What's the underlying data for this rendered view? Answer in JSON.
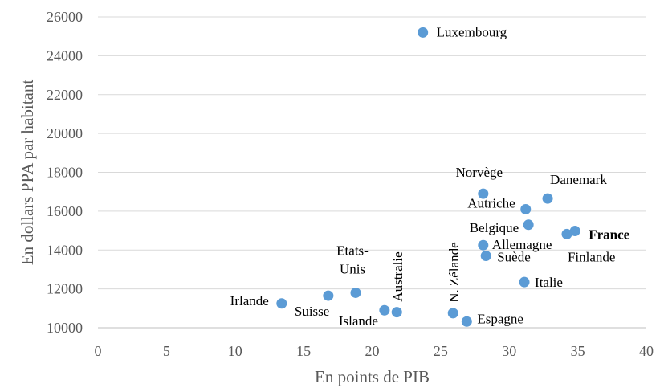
{
  "chart_data": {
    "type": "scatter",
    "title": "",
    "xlabel": "En points de PIB",
    "ylabel": "En dollars PPA par habitant",
    "xlim": [
      0,
      40
    ],
    "ylim": [
      10000,
      26000
    ],
    "x_ticks": [
      0,
      5,
      10,
      15,
      20,
      25,
      30,
      35,
      40
    ],
    "y_ticks": [
      10000,
      12000,
      14000,
      16000,
      18000,
      20000,
      22000,
      24000,
      26000
    ],
    "grid": "horizontal",
    "marker_color": "#5b9bd5",
    "points": [
      {
        "label": "Luxembourg",
        "x": 23.7,
        "y": 25200
      },
      {
        "label": "Norvège",
        "x": 28.1,
        "y": 16900
      },
      {
        "label": "Danemark",
        "x": 32.8,
        "y": 16650
      },
      {
        "label": "Autriche",
        "x": 31.2,
        "y": 16100
      },
      {
        "label": "Belgique",
        "x": 31.4,
        "y": 15300
      },
      {
        "label": "France",
        "x": 34.8,
        "y": 14980,
        "bold": true
      },
      {
        "label": "Finlande",
        "x": 34.2,
        "y": 14820
      },
      {
        "label": "Allemagne",
        "x": 28.1,
        "y": 14250
      },
      {
        "label": "Suède",
        "x": 28.3,
        "y": 13700
      },
      {
        "label": "Italie",
        "x": 31.1,
        "y": 12350
      },
      {
        "label": "Etats-Unis",
        "x": 18.8,
        "y": 11800
      },
      {
        "label": "Suisse",
        "x": 16.8,
        "y": 11650
      },
      {
        "label": "Irlande",
        "x": 13.4,
        "y": 11250
      },
      {
        "label": "Islande",
        "x": 20.9,
        "y": 10900
      },
      {
        "label": "Australie",
        "x": 21.8,
        "y": 10800
      },
      {
        "label": "N. Zélande",
        "x": 25.9,
        "y": 10750
      },
      {
        "label": "Espagne",
        "x": 26.9,
        "y": 10320
      }
    ]
  }
}
